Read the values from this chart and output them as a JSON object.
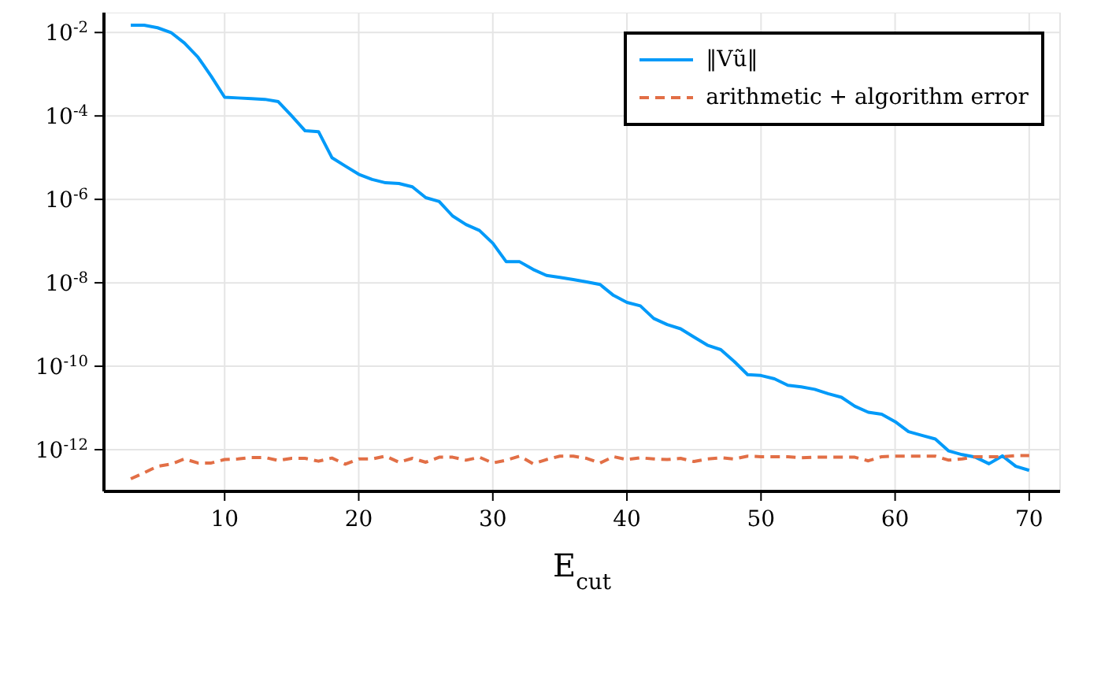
{
  "chart_data": {
    "type": "line",
    "xlabel": "E$_{cut}$",
    "log": "y",
    "grid": true,
    "legend": "top right",
    "xlim": [
      1,
      72.3
    ],
    "xticks": [
      10,
      20,
      30,
      40,
      50,
      60,
      70
    ],
    "ylim": [
      1e-13,
      0.03
    ],
    "yticks": [
      {
        "value": 1e-12,
        "label": "10$^{-12}$"
      },
      {
        "value": 1e-10,
        "label": "10$^{-10}$"
      },
      {
        "value": 1e-08,
        "label": "10$^{-8}$"
      },
      {
        "value": 1e-06,
        "label": "10$^{-6}$"
      },
      {
        "value": 0.0001,
        "label": "10$^{-4}$"
      },
      {
        "value": 0.01,
        "label": "10$^{-2}$"
      }
    ],
    "x": [
      3,
      4,
      5,
      6,
      7,
      8,
      9,
      10,
      11,
      12,
      13,
      14,
      15,
      16,
      17,
      18,
      19,
      20,
      21,
      22,
      23,
      24,
      25,
      26,
      27,
      28,
      29,
      30,
      31,
      32,
      33,
      34,
      35,
      36,
      37,
      38,
      39,
      40,
      41,
      42,
      43,
      44,
      45,
      46,
      47,
      48,
      49,
      50,
      51,
      52,
      53,
      54,
      55,
      56,
      57,
      58,
      59,
      60,
      61,
      62,
      63,
      64,
      65,
      66,
      67,
      68,
      69,
      70
    ],
    "series": [
      {
        "name": "‖Vũ‖",
        "color": "#009af9",
        "line_style": "solid",
        "values": [
          0.015,
          0.015,
          0.013,
          0.01,
          0.0056,
          0.0026,
          0.00089,
          0.00028,
          0.00027,
          0.00026,
          0.00025,
          0.00022,
          0.0001,
          4.4e-05,
          4.2e-05,
          1e-05,
          6.3e-06,
          4e-06,
          3e-06,
          2.5e-06,
          2.4e-06,
          2e-06,
          1.1e-06,
          8.9e-07,
          4e-07,
          2.5e-07,
          1.8e-07,
          8.9e-08,
          3.2e-08,
          3.2e-08,
          2.1e-08,
          1.5e-08,
          1.35e-08,
          1.2e-08,
          1.05e-08,
          9.1e-09,
          5e-09,
          3.4e-09,
          2.8e-09,
          1.4e-09,
          1e-09,
          7.9e-10,
          5e-10,
          3.2e-10,
          2.5e-10,
          1.3e-10,
          6.3e-11,
          6e-11,
          5e-11,
          3.5e-11,
          3.2e-11,
          2.8e-11,
          2.2e-11,
          1.8e-11,
          1.1e-11,
          7.9e-12,
          7.1e-12,
          4.7e-12,
          2.7e-12,
          2.2e-12,
          1.8e-12,
          9.3e-13,
          7.6e-13,
          6.6e-13,
          4.6e-13,
          7.1e-13,
          4e-13,
          3.2e-13
        ]
      },
      {
        "name": "arithmetic + algorithm error",
        "color": "#e26f46",
        "line_style": "dashed",
        "values": [
          2e-13,
          2.8e-13,
          4e-13,
          4.5e-13,
          6e-13,
          4.8e-13,
          4.8e-13,
          5.8e-13,
          6e-13,
          6.5e-13,
          6.5e-13,
          5.5e-13,
          6.2e-13,
          6.2e-13,
          5.3e-13,
          6.3e-13,
          4.5e-13,
          6e-13,
          6e-13,
          7e-13,
          5e-13,
          6.2e-13,
          5e-13,
          6.6e-13,
          6.6e-13,
          5.6e-13,
          6.6e-13,
          4.8e-13,
          5.6e-13,
          7e-13,
          4.6e-13,
          5.8e-13,
          7e-13,
          7e-13,
          6.2e-13,
          4.8e-13,
          6.8e-13,
          5.8e-13,
          6.4e-13,
          6e-13,
          5.8e-13,
          6.2e-13,
          5.2e-13,
          6e-13,
          6.4e-13,
          6e-13,
          7e-13,
          6.8e-13,
          6.8e-13,
          6.8e-13,
          6.4e-13,
          6.6e-13,
          6.6e-13,
          6.6e-13,
          6.6e-13,
          5.4e-13,
          6.8e-13,
          7e-13,
          7e-13,
          7e-13,
          7e-13,
          5.6e-13,
          6e-13,
          6.8e-13,
          6.8e-13,
          6.8e-13,
          7.2e-13,
          7.2e-13
        ]
      }
    ]
  }
}
